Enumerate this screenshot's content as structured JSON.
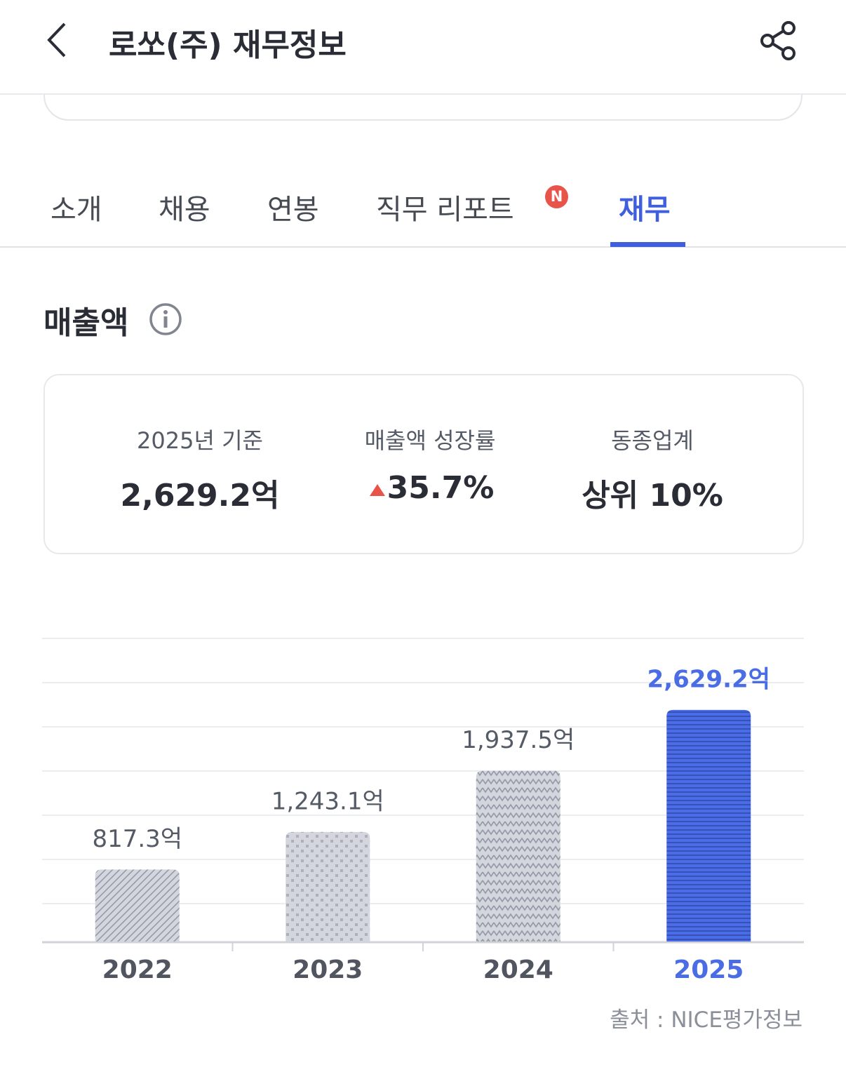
{
  "header": {
    "title": "로쏘(주) 재무정보"
  },
  "tabs": {
    "items": [
      "소개",
      "채용",
      "연봉",
      "직무 리포트",
      "재무"
    ],
    "badge": "N"
  },
  "section": {
    "title": "매출액"
  },
  "summary": {
    "items": [
      {
        "label": "2025년 기준",
        "value": "2,629.2억"
      },
      {
        "label": "매출액 성장률",
        "value": "35.7%"
      },
      {
        "label": "동종업계",
        "value": "상위 10%"
      }
    ]
  },
  "chart_data": {
    "type": "bar",
    "categories": [
      "2022",
      "2023",
      "2024",
      "2025"
    ],
    "values": [
      817.3,
      1243.1,
      1937.5,
      2629.2
    ],
    "value_labels": [
      "817.3억",
      "1,243.1억",
      "1,937.5억",
      "2,629.2억"
    ],
    "colors": [
      "#d3d6dc",
      "#d3d6dc",
      "#d3d6dc",
      "#4a6de5"
    ],
    "patterns": [
      "diagonal",
      "dots",
      "zigzag",
      "horizontal"
    ],
    "value_label_colors": [
      "#555b66",
      "#555b66",
      "#555b66",
      "#4a6de5"
    ],
    "category_colors": [
      "#50555f",
      "#50555f",
      "#50555f",
      "#4a6de5"
    ],
    "ylim": [
      0,
      3440
    ],
    "grid": true
  },
  "source": "출처 : NICE평가정보"
}
